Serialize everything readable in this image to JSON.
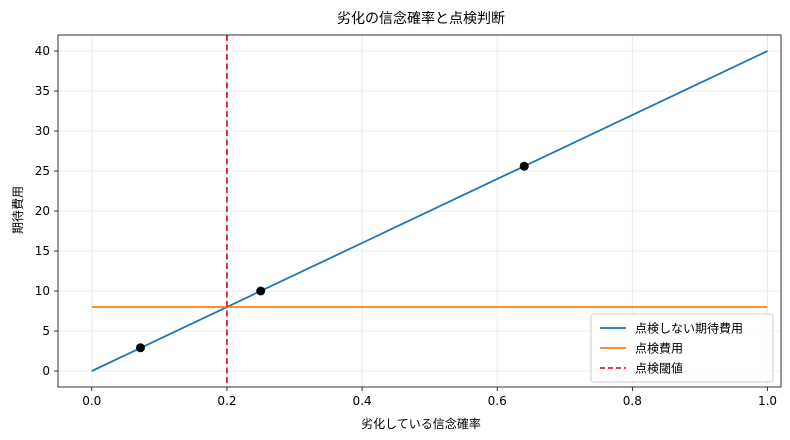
{
  "chart_data": {
    "type": "line",
    "title": "劣化の信念確率と点検判断",
    "xlabel": "劣化している信念確率",
    "ylabel": "期待費用",
    "xlim": [
      -0.05,
      1.02
    ],
    "ylim": [
      -2,
      42
    ],
    "x_ticks": [
      0.0,
      0.2,
      0.4,
      0.6,
      0.8,
      1.0
    ],
    "x_tick_labels": [
      "0.0",
      "0.2",
      "0.4",
      "0.6",
      "0.8",
      "1.0"
    ],
    "y_ticks": [
      0,
      5,
      10,
      15,
      20,
      25,
      30,
      35,
      40
    ],
    "y_tick_labels": [
      "0",
      "5",
      "10",
      "15",
      "20",
      "25",
      "30",
      "35",
      "40"
    ],
    "grid": true,
    "legend_position": "bottom-right",
    "series": [
      {
        "name": "点検しない期待費用",
        "color": "#1f77b4",
        "style": "solid",
        "x": [
          0.0,
          1.0
        ],
        "y": [
          0,
          40
        ]
      },
      {
        "name": "点検費用",
        "color": "#ff7f0e",
        "style": "solid",
        "x": [
          0.0,
          1.0
        ],
        "y": [
          8,
          8
        ]
      },
      {
        "name": "点検閾値",
        "color": "#d62728",
        "style": "dashed",
        "vline_x": 0.2
      }
    ],
    "points": [
      {
        "x": 0.072,
        "y": 2.9
      },
      {
        "x": 0.25,
        "y": 10.0
      },
      {
        "x": 0.64,
        "y": 25.6
      }
    ],
    "point_color": "#000000"
  }
}
